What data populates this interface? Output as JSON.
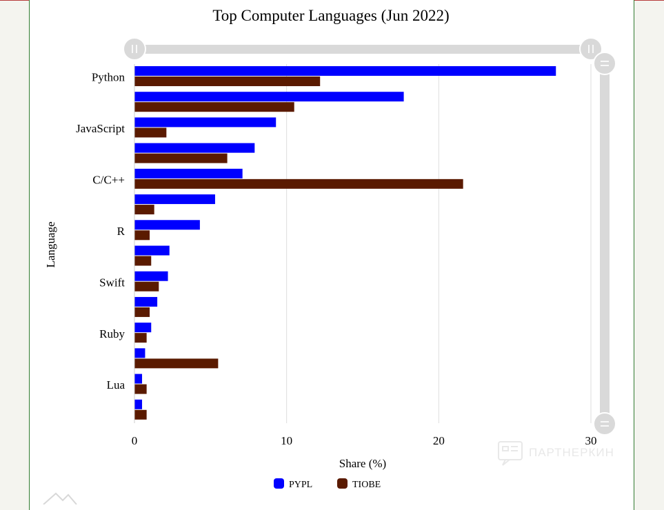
{
  "chart_data": {
    "type": "bar",
    "orientation": "horizontal",
    "title": "Top Computer Languages (Jun 2022)",
    "xlabel": "Share (%)",
    "ylabel": "Language",
    "xlim": [
      0,
      30
    ],
    "xticks": [
      0,
      10,
      20,
      30
    ],
    "grid": true,
    "legend_placement": "bottom-center",
    "categories": [
      "Python",
      "",
      "JavaScript",
      "",
      "C/C++",
      "",
      "R",
      "",
      "Swift",
      "",
      "Ruby",
      "",
      "Lua",
      ""
    ],
    "series": [
      {
        "name": "PYPL",
        "color": "#0000ff",
        "values": [
          27.7,
          17.7,
          9.3,
          7.9,
          7.1,
          5.3,
          4.3,
          2.3,
          2.2,
          1.5,
          1.1,
          0.7,
          0.5,
          0.5
        ]
      },
      {
        "name": "TIOBE",
        "color": "#5a1a00",
        "values": [
          12.2,
          10.5,
          2.1,
          6.1,
          21.6,
          1.3,
          1.0,
          1.1,
          1.6,
          1.0,
          0.8,
          5.5,
          0.8,
          0.8
        ]
      }
    ]
  },
  "watermark": {
    "text": "ПАРТНЕРКИН"
  }
}
